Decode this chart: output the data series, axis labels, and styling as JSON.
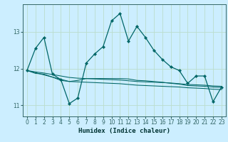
{
  "xlabel": "Humidex (Indice chaleur)",
  "background_color": "#cceeff",
  "grid_color": "#bbddcc",
  "line_color": "#006666",
  "x_data": [
    0,
    1,
    2,
    3,
    4,
    5,
    6,
    7,
    8,
    9,
    10,
    11,
    12,
    13,
    14,
    15,
    16,
    17,
    18,
    19,
    20,
    21,
    22,
    23
  ],
  "series1": [
    11.95,
    12.55,
    12.85,
    11.85,
    11.7,
    11.05,
    11.2,
    12.15,
    12.4,
    12.6,
    13.3,
    13.5,
    12.75,
    13.15,
    12.85,
    12.5,
    12.25,
    12.05,
    11.95,
    11.6,
    11.8,
    11.8,
    11.1,
    11.5
  ],
  "series2": [
    11.95,
    11.87,
    11.85,
    11.77,
    11.68,
    11.65,
    11.68,
    11.73,
    11.73,
    11.73,
    11.73,
    11.73,
    11.72,
    11.68,
    11.67,
    11.65,
    11.63,
    11.6,
    11.58,
    11.54,
    11.53,
    11.52,
    11.5,
    11.49
  ],
  "series3": [
    11.95,
    11.91,
    11.88,
    11.84,
    11.8,
    11.76,
    11.74,
    11.73,
    11.72,
    11.71,
    11.7,
    11.69,
    11.67,
    11.65,
    11.64,
    11.63,
    11.62,
    11.61,
    11.59,
    11.57,
    11.56,
    11.55,
    11.53,
    11.52
  ],
  "series4": [
    11.95,
    11.89,
    11.83,
    11.77,
    11.71,
    11.65,
    11.64,
    11.63,
    11.62,
    11.61,
    11.6,
    11.59,
    11.57,
    11.55,
    11.54,
    11.53,
    11.52,
    11.51,
    11.5,
    11.48,
    11.47,
    11.46,
    11.44,
    11.43
  ],
  "ylim": [
    10.7,
    13.75
  ],
  "xlim": [
    -0.5,
    23.5
  ],
  "yticks": [
    11,
    12,
    13
  ],
  "xticks": [
    0,
    1,
    2,
    3,
    4,
    5,
    6,
    7,
    8,
    9,
    10,
    11,
    12,
    13,
    14,
    15,
    16,
    17,
    18,
    19,
    20,
    21,
    22,
    23
  ],
  "tick_fontsize": 5.5,
  "xlabel_fontsize": 6.5
}
